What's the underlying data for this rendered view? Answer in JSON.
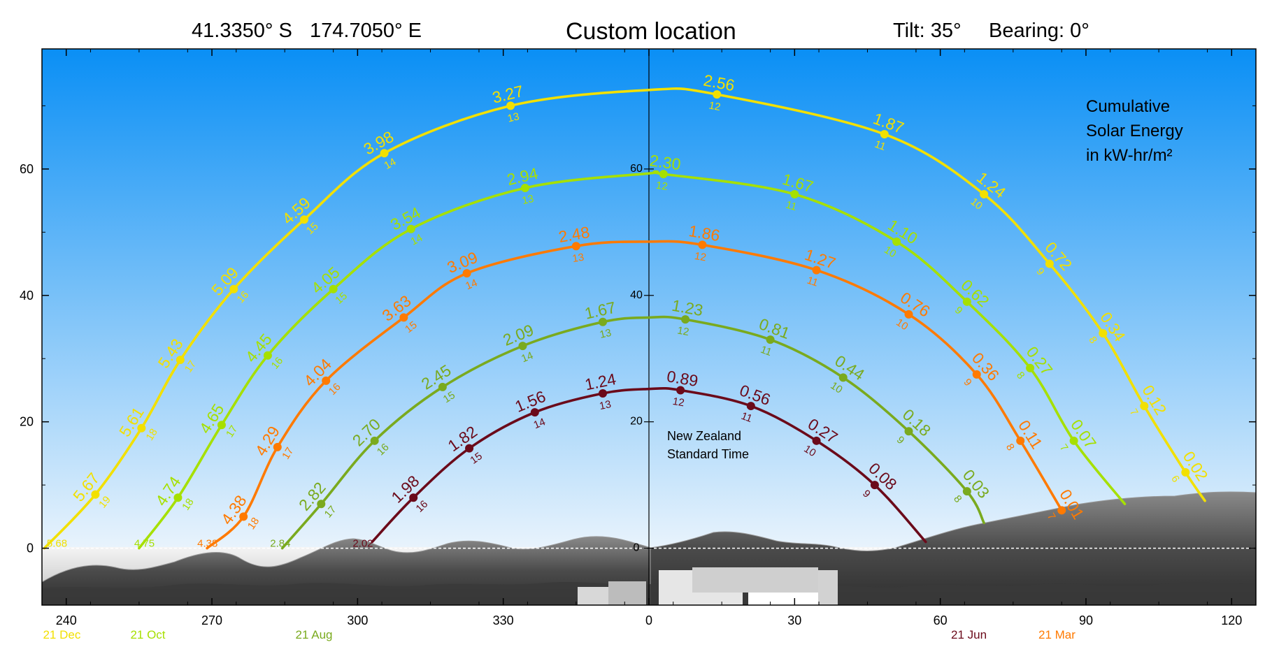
{
  "header": {
    "latitude": "41.3350° S",
    "longitude": "174.7050° E",
    "title": "Custom location",
    "tilt": "Tilt:  35°",
    "bearing": "Bearing:   0°"
  },
  "annotations": {
    "energy_line1": "Cumulative",
    "energy_line2": "Solar Energy",
    "energy_line3": "in kW-hr/m²",
    "tz_line1": "New Zealand",
    "tz_line2": "Standard Time"
  },
  "colors": {
    "sky_top": "#0a8ff5",
    "sky_bottom": "#e8f3fc",
    "terrain": "#5a5a5a",
    "dec": "#f2e000",
    "oct": "#a6e000",
    "aug": "#7aaa1e",
    "mar": "#ff7a00",
    "jun": "#6b0a1a"
  },
  "chart_data": {
    "type": "line",
    "xlim": [
      235,
      125
    ],
    "xticks": [
      240,
      270,
      300,
      330,
      0,
      30,
      60,
      90,
      120
    ],
    "ylim": [
      -9,
      79
    ],
    "yticks": [
      0,
      20,
      40,
      60
    ],
    "horizon_elevation": 0,
    "series": [
      {
        "name": "21 Dec",
        "color_key": "dec",
        "start_label": {
          "azimuth": 235.5,
          "value": "5.68"
        },
        "points": [
          {
            "azimuth": 235.5,
            "elevation": 0
          },
          {
            "azimuth": 246.0,
            "elevation": 8.5,
            "hour": 19,
            "energy": "5.67"
          },
          {
            "azimuth": 255.5,
            "elevation": 19.0,
            "hour": 18,
            "energy": "5.61"
          },
          {
            "azimuth": 263.5,
            "elevation": 29.8,
            "hour": 17,
            "energy": "5.43"
          },
          {
            "azimuth": 274.5,
            "elevation": 41.0,
            "hour": 16,
            "energy": "5.09"
          },
          {
            "azimuth": 289.0,
            "elevation": 52.0,
            "hour": 15,
            "energy": "4.59"
          },
          {
            "azimuth": 305.5,
            "elevation": 62.5,
            "hour": 14,
            "energy": "3.98"
          },
          {
            "azimuth": 331.5,
            "elevation": 70.0,
            "hour": 13,
            "energy": "3.27"
          },
          {
            "azimuth": 0,
            "elevation": 72.5
          },
          {
            "azimuth": 14.0,
            "elevation": 71.8,
            "hour": 12,
            "energy": "2.56"
          },
          {
            "azimuth": 48.5,
            "elevation": 65.5,
            "hour": 11,
            "energy": "1.87"
          },
          {
            "azimuth": 69.0,
            "elevation": 56.0,
            "hour": 10,
            "energy": "1.24"
          },
          {
            "azimuth": 82.5,
            "elevation": 45.0,
            "hour": 9,
            "energy": "0.72"
          },
          {
            "azimuth": 93.5,
            "elevation": 34.0,
            "hour": 8,
            "energy": "0.34"
          },
          {
            "azimuth": 102.0,
            "elevation": 22.5,
            "hour": 7,
            "energy": "0.12"
          },
          {
            "azimuth": 110.5,
            "elevation": 12.0,
            "hour": 6,
            "energy": "0.02"
          },
          {
            "azimuth": 114.5,
            "elevation": 7.5
          }
        ]
      },
      {
        "name": "21 Oct",
        "color_key": "oct",
        "start_label": {
          "azimuth": 253.5,
          "value": "4.75"
        },
        "points": [
          {
            "azimuth": 255.0,
            "elevation": 0
          },
          {
            "azimuth": 263.0,
            "elevation": 8.0,
            "hour": 18,
            "energy": "4.74"
          },
          {
            "azimuth": 272.0,
            "elevation": 19.5,
            "hour": 17,
            "energy": "4.65"
          },
          {
            "azimuth": 281.5,
            "elevation": 30.5,
            "hour": 16,
            "energy": "4.45"
          },
          {
            "azimuth": 295.0,
            "elevation": 41.0,
            "hour": 15,
            "energy": "4.05"
          },
          {
            "azimuth": 311.0,
            "elevation": 50.5,
            "hour": 14,
            "energy": "3.54"
          },
          {
            "azimuth": 334.5,
            "elevation": 57.0,
            "hour": 13,
            "energy": "2.94"
          },
          {
            "azimuth": 0,
            "elevation": 59.3
          },
          {
            "azimuth": 3.0,
            "elevation": 59.2,
            "hour": 12,
            "energy": "2.30"
          },
          {
            "azimuth": 30.0,
            "elevation": 56.0,
            "hour": 11,
            "energy": "1.67"
          },
          {
            "azimuth": 51.0,
            "elevation": 48.5,
            "hour": 10,
            "energy": "1.10"
          },
          {
            "azimuth": 65.5,
            "elevation": 39.0,
            "hour": 9,
            "energy": "0.62"
          },
          {
            "azimuth": 78.5,
            "elevation": 28.5,
            "hour": 8,
            "energy": "0.27"
          },
          {
            "azimuth": 87.5,
            "elevation": 17.0,
            "hour": 7,
            "energy": "0.07"
          },
          {
            "azimuth": 98.0,
            "elevation": 7.0
          }
        ]
      },
      {
        "name": "21 Mar",
        "color_key": "mar",
        "start_label": {
          "azimuth": 266.5,
          "value": "4.38"
        },
        "points": [
          {
            "azimuth": 269.0,
            "elevation": 0
          },
          {
            "azimuth": 276.5,
            "elevation": 5.0,
            "hour": 18,
            "energy": "4.38"
          },
          {
            "azimuth": 283.5,
            "elevation": 16.0,
            "hour": 17,
            "energy": "4.29"
          },
          {
            "azimuth": 293.5,
            "elevation": 26.5,
            "hour": 16,
            "energy": "4.04"
          },
          {
            "azimuth": 309.5,
            "elevation": 36.5,
            "hour": 15,
            "energy": "3.63"
          },
          {
            "azimuth": 322.5,
            "elevation": 43.5,
            "hour": 14,
            "energy": "3.09"
          },
          {
            "azimuth": 345.0,
            "elevation": 47.8,
            "hour": 13,
            "energy": "2.48"
          },
          {
            "azimuth": 0,
            "elevation": 48.5
          },
          {
            "azimuth": 11.0,
            "elevation": 48.0,
            "hour": 12,
            "energy": "1.86"
          },
          {
            "azimuth": 34.5,
            "elevation": 44.0,
            "hour": 11,
            "energy": "1.27"
          },
          {
            "azimuth": 53.5,
            "elevation": 37.0,
            "hour": 10,
            "energy": "0.76"
          },
          {
            "azimuth": 67.5,
            "elevation": 27.5,
            "hour": 9,
            "energy": "0.36"
          },
          {
            "azimuth": 76.5,
            "elevation": 17.0,
            "hour": 8,
            "energy": "0.11"
          },
          {
            "azimuth": 85.0,
            "elevation": 6.0,
            "hour": 7,
            "energy": "0.01"
          }
        ]
      },
      {
        "name": "21 Aug",
        "color_key": "aug",
        "start_label": {
          "azimuth": 281.5,
          "value": "2.84"
        },
        "points": [
          {
            "azimuth": 284.5,
            "elevation": 0
          },
          {
            "azimuth": 292.5,
            "elevation": 7.0,
            "hour": 17,
            "energy": "2.82"
          },
          {
            "azimuth": 303.5,
            "elevation": 17.0,
            "hour": 16,
            "energy": "2.70"
          },
          {
            "azimuth": 317.5,
            "elevation": 25.5,
            "hour": 15,
            "energy": "2.45"
          },
          {
            "azimuth": 334.0,
            "elevation": 32.0,
            "hour": 14,
            "energy": "2.09"
          },
          {
            "azimuth": 350.5,
            "elevation": 35.8,
            "hour": 13,
            "energy": "1.67"
          },
          {
            "azimuth": 0,
            "elevation": 36.5
          },
          {
            "azimuth": 7.5,
            "elevation": 36.2,
            "hour": 12,
            "energy": "1.23"
          },
          {
            "azimuth": 25.0,
            "elevation": 33.0,
            "hour": 11,
            "energy": "0.81"
          },
          {
            "azimuth": 40.0,
            "elevation": 27.0,
            "hour": 10,
            "energy": "0.44"
          },
          {
            "azimuth": 53.5,
            "elevation": 18.5,
            "hour": 9,
            "energy": "0.18"
          },
          {
            "azimuth": 65.5,
            "elevation": 9.0,
            "hour": 8,
            "energy": "0.03"
          },
          {
            "azimuth": 69.0,
            "elevation": 4.0
          }
        ]
      },
      {
        "name": "21 Jun",
        "color_key": "jun",
        "start_label": {
          "azimuth": 298.5,
          "value": "2.02"
        },
        "points": [
          {
            "azimuth": 303.0,
            "elevation": 1.0
          },
          {
            "azimuth": 311.5,
            "elevation": 8.0,
            "hour": 16,
            "energy": "1.98"
          },
          {
            "azimuth": 323.0,
            "elevation": 15.8,
            "hour": 15,
            "energy": "1.82"
          },
          {
            "azimuth": 336.5,
            "elevation": 21.5,
            "hour": 14,
            "energy": "1.56"
          },
          {
            "azimuth": 350.5,
            "elevation": 24.5,
            "hour": 13,
            "energy": "1.24"
          },
          {
            "azimuth": 0,
            "elevation": 25.2
          },
          {
            "azimuth": 6.5,
            "elevation": 25.0,
            "hour": 12,
            "energy": "0.89"
          },
          {
            "azimuth": 21.0,
            "elevation": 22.5,
            "hour": 11,
            "energy": "0.56"
          },
          {
            "azimuth": 34.5,
            "elevation": 17.0,
            "hour": 10,
            "energy": "0.27"
          },
          {
            "azimuth": 46.5,
            "elevation": 10.0,
            "hour": 9,
            "energy": "0.08"
          },
          {
            "azimuth": 57.0,
            "elevation": 1.0
          }
        ]
      }
    ],
    "date_legend": [
      {
        "label": "21 Dec",
        "color_key": "dec",
        "azimuth": 235.5
      },
      {
        "label": "21 Oct",
        "color_key": "oct",
        "azimuth": 253.5
      },
      {
        "label": "21 Aug",
        "color_key": "aug",
        "azimuth": 287.5
      },
      {
        "label": "21 Jun",
        "color_key": "jun",
        "azimuth": 62.5
      },
      {
        "label": "21 Mar",
        "color_key": "mar",
        "azimuth": 80.5
      }
    ]
  }
}
